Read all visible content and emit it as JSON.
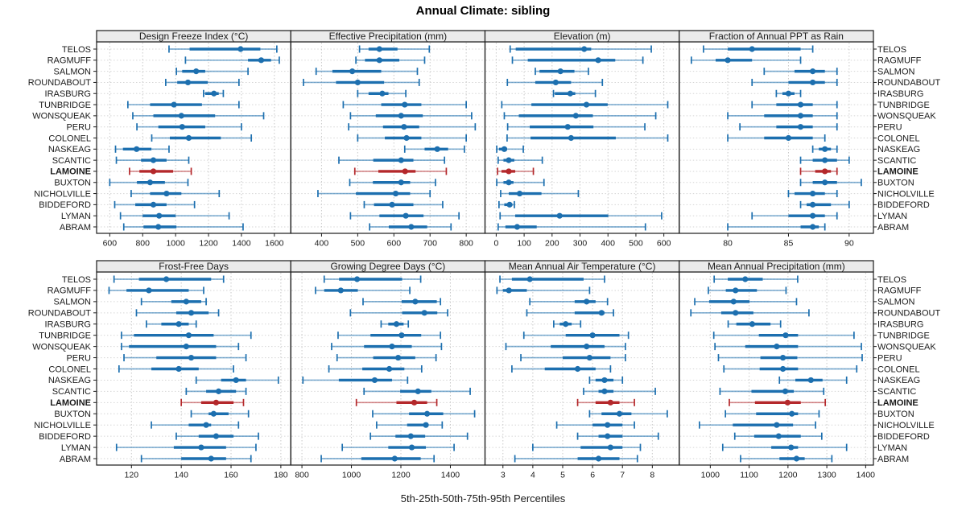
{
  "title": "Annual Climate: sibling",
  "caption": "5th-25th-50th-75th-95th Percentiles",
  "colors": {
    "series": "#1C6FAF",
    "series_whisker": "rgba(28,111,175,0.55)",
    "highlight": "#B4282B",
    "highlight_whisker": "rgba(180,40,43,0.55)",
    "grid": "#c9c9c9",
    "row_grid": "#d6d6d6",
    "strip_bg": "#ebebeb",
    "border": "#1a1a1a"
  },
  "chart_data": {
    "type": "trellis-percentile-dotplot",
    "percentile_labels": [
      "5th",
      "25th",
      "50th",
      "75th",
      "95th"
    ],
    "highlight_station": "LAMOINE",
    "stations": [
      "TELOS",
      "RAGMUFF",
      "SALMON",
      "ROUNDABOUT",
      "IRASBURG",
      "TUNBRIDGE",
      "WONSQUEAK",
      "PERU",
      "COLONEL",
      "NASKEAG",
      "SCANTIC",
      "LAMOINE",
      "BUXTON",
      "NICHOLVILLE",
      "BIDDEFORD",
      "LYMAN",
      "ABRAM"
    ],
    "panels": [
      {
        "title": "Design Freeze Index (°C)",
        "ticks": [
          600,
          800,
          1000,
          1200,
          1400,
          1600
        ],
        "xlim": [
          520,
          1700
        ],
        "values": [
          [
            960,
            1085,
            1395,
            1515,
            1615
          ],
          [
            1060,
            1440,
            1520,
            1580,
            1630
          ],
          [
            1005,
            1040,
            1125,
            1180,
            1440
          ],
          [
            940,
            1010,
            1075,
            1195,
            1385
          ],
          [
            1170,
            1180,
            1233,
            1262,
            1290
          ],
          [
            710,
            845,
            990,
            1160,
            1385
          ],
          [
            740,
            865,
            1035,
            1240,
            1535
          ],
          [
            765,
            895,
            1040,
            1180,
            1400
          ],
          [
            855,
            965,
            1080,
            1275,
            1460
          ],
          [
            635,
            680,
            763,
            853,
            960
          ],
          [
            640,
            790,
            865,
            945,
            1080
          ],
          [
            720,
            780,
            865,
            985,
            1095
          ],
          [
            600,
            765,
            845,
            935,
            1075
          ],
          [
            730,
            845,
            945,
            1035,
            1265
          ],
          [
            630,
            755,
            865,
            945,
            1115
          ],
          [
            665,
            800,
            900,
            1000,
            1325
          ],
          [
            685,
            805,
            895,
            1005,
            1410
          ]
        ]
      },
      {
        "title": "Effective Precipitation (mm)",
        "ticks": [
          400,
          500,
          600,
          700,
          800
        ],
        "xlim": [
          315,
          852
        ],
        "values": [
          [
            505,
            530,
            560,
            610,
            698
          ],
          [
            495,
            520,
            560,
            615,
            685
          ],
          [
            385,
            430,
            485,
            565,
            665
          ],
          [
            350,
            440,
            500,
            573,
            670
          ],
          [
            500,
            530,
            568,
            585,
            633
          ],
          [
            460,
            565,
            630,
            676,
            800
          ],
          [
            480,
            550,
            620,
            680,
            815
          ],
          [
            475,
            570,
            628,
            670,
            825
          ],
          [
            500,
            575,
            635,
            676,
            800
          ],
          [
            630,
            685,
            720,
            750,
            795
          ],
          [
            448,
            543,
            620,
            654,
            740
          ],
          [
            492,
            557,
            631,
            660,
            745
          ],
          [
            478,
            542,
            620,
            645,
            715
          ],
          [
            390,
            495,
            605,
            645,
            700
          ],
          [
            518,
            545,
            595,
            654,
            735
          ],
          [
            480,
            560,
            633,
            682,
            780
          ],
          [
            533,
            586,
            648,
            692,
            758
          ]
        ]
      },
      {
        "title": "Elevation (m)",
        "ticks": [
          0,
          100,
          200,
          300,
          400,
          500,
          600
        ],
        "xlim": [
          -40,
          655
        ],
        "values": [
          [
            50,
            70,
            315,
            340,
            555
          ],
          [
            58,
            113,
            365,
            426,
            525
          ],
          [
            140,
            155,
            230,
            280,
            330
          ],
          [
            40,
            140,
            213,
            268,
            380
          ],
          [
            205,
            210,
            265,
            283,
            355
          ],
          [
            20,
            126,
            323,
            399,
            614
          ],
          [
            29,
            81,
            285,
            346,
            571
          ],
          [
            41,
            120,
            256,
            348,
            532
          ],
          [
            39,
            123,
            268,
            428,
            614
          ],
          [
            2,
            10,
            29,
            39,
            97
          ],
          [
            7,
            26,
            45,
            65,
            165
          ],
          [
            5,
            19,
            45,
            68,
            133
          ],
          [
            2,
            26,
            45,
            62,
            171
          ],
          [
            16,
            45,
            84,
            162,
            294
          ],
          [
            10,
            29,
            48,
            58,
            65
          ],
          [
            14,
            68,
            227,
            401,
            592
          ],
          [
            7,
            33,
            75,
            145,
            534
          ]
        ]
      },
      {
        "title": "Fraction of Annual PPT as Rain",
        "ticks": [
          80,
          85,
          90
        ],
        "xlim": [
          76,
          92
        ],
        "values": [
          [
            78,
            80,
            82,
            86,
            87
          ],
          [
            77,
            79,
            80,
            82,
            86
          ],
          [
            83,
            85.5,
            87,
            88,
            89
          ],
          [
            82,
            85,
            87,
            88,
            89
          ],
          [
            84,
            84.5,
            85,
            85.5,
            86
          ],
          [
            82,
            84,
            86,
            87,
            89
          ],
          [
            80,
            83,
            86,
            87,
            89
          ],
          [
            81,
            84,
            86,
            87,
            89
          ],
          [
            80,
            83,
            85,
            87,
            88
          ],
          [
            87,
            87.5,
            88,
            88.5,
            89
          ],
          [
            86,
            87,
            88,
            89,
            90
          ],
          [
            86,
            87.2,
            88,
            88.5,
            89
          ],
          [
            86,
            87,
            88,
            89,
            91
          ],
          [
            85,
            85.5,
            87,
            88,
            89
          ],
          [
            86,
            86.5,
            87,
            88.5,
            90
          ],
          [
            82,
            85,
            87,
            88,
            89
          ],
          [
            80,
            86,
            87,
            87.5,
            88
          ]
        ]
      },
      {
        "title": "Frost-Free Days",
        "ticks": [
          120,
          140,
          160,
          180
        ],
        "xlim": [
          106,
          184
        ],
        "values": [
          [
            113,
            123,
            134,
            152,
            157
          ],
          [
            111,
            118,
            127,
            143,
            149
          ],
          [
            124,
            136,
            142,
            148,
            150
          ],
          [
            122,
            138,
            144,
            151,
            155
          ],
          [
            126,
            132,
            139,
            143,
            146
          ],
          [
            116,
            121,
            143,
            153,
            168
          ],
          [
            116,
            119,
            142,
            154,
            163
          ],
          [
            117,
            130,
            144,
            154,
            166
          ],
          [
            115,
            128,
            139,
            147,
            161
          ],
          [
            146,
            156,
            162,
            166,
            179
          ],
          [
            142,
            150,
            155,
            162,
            166
          ],
          [
            140,
            148,
            154,
            161,
            165
          ],
          [
            144,
            151,
            153,
            159,
            167
          ],
          [
            128,
            143,
            150,
            152,
            163
          ],
          [
            138,
            147,
            154,
            161,
            171
          ],
          [
            114,
            137,
            148,
            158,
            170
          ],
          [
            124,
            140,
            152,
            158,
            168
          ]
        ]
      },
      {
        "title": "Growing Degree Days (°C)",
        "ticks": [
          800,
          1000,
          1200,
          1400
        ],
        "xlim": [
          755,
          1540
        ],
        "values": [
          [
            890,
            950,
            1023,
            1205,
            1280
          ],
          [
            855,
            890,
            957,
            1026,
            1236
          ],
          [
            1047,
            1203,
            1258,
            1345,
            1360
          ],
          [
            996,
            1205,
            1295,
            1347,
            1389
          ],
          [
            1120,
            1149,
            1182,
            1211,
            1230
          ],
          [
            946,
            1077,
            1203,
            1282,
            1360
          ],
          [
            920,
            1051,
            1164,
            1244,
            1364
          ],
          [
            942,
            1088,
            1189,
            1258,
            1342
          ],
          [
            909,
            1044,
            1153,
            1214,
            1284
          ],
          [
            804,
            949,
            1094,
            1164,
            1227
          ],
          [
            1051,
            1197,
            1269,
            1323,
            1480
          ],
          [
            1020,
            1182,
            1254,
            1306,
            1345
          ],
          [
            1086,
            1233,
            1306,
            1371,
            1498
          ],
          [
            1102,
            1225,
            1301,
            1309,
            1367
          ],
          [
            1077,
            1178,
            1240,
            1298,
            1469
          ],
          [
            963,
            1149,
            1244,
            1301,
            1415
          ],
          [
            878,
            1040,
            1175,
            1280,
            1334
          ]
        ]
      },
      {
        "title": "Mean Annual Air Temperature (°C)",
        "ticks": [
          3,
          4,
          5,
          6,
          7,
          8
        ],
        "xlim": [
          2.4,
          8.9
        ],
        "values": [
          [
            2.9,
            3.3,
            3.9,
            5.7,
            6.4
          ],
          [
            2.8,
            3.0,
            3.2,
            3.8,
            5.9
          ],
          [
            3.9,
            5.4,
            5.8,
            6.1,
            6.5
          ],
          [
            3.8,
            5.4,
            6.3,
            6.4,
            6.7
          ],
          [
            4.7,
            4.9,
            5.1,
            5.3,
            5.6
          ],
          [
            3.7,
            5.1,
            6.0,
            6.9,
            7.2
          ],
          [
            3.1,
            4.6,
            5.8,
            6.4,
            7.1
          ],
          [
            3.6,
            5.0,
            5.9,
            6.6,
            7.1
          ],
          [
            3.3,
            4.4,
            5.5,
            6.1,
            6.6
          ],
          [
            5.9,
            6.1,
            6.4,
            6.7,
            7.0
          ],
          [
            5.7,
            6.2,
            6.4,
            6.7,
            8.1
          ],
          [
            5.5,
            6.1,
            6.6,
            6.9,
            7.4
          ],
          [
            5.9,
            6.3,
            6.9,
            7.3,
            8.5
          ],
          [
            4.8,
            6.0,
            6.5,
            7.0,
            7.4
          ],
          [
            5.5,
            6.2,
            6.5,
            7.0,
            8.2
          ],
          [
            4.0,
            5.6,
            6.6,
            7.0,
            7.6
          ],
          [
            3.4,
            5.5,
            6.2,
            6.9,
            7.5
          ]
        ]
      },
      {
        "title": "Mean Annual Precipitation (mm)",
        "ticks": [
          1000,
          1100,
          1200,
          1300,
          1400
        ],
        "xlim": [
          920,
          1420
        ],
        "values": [
          [
            1010,
            1045,
            1090,
            1135,
            1225
          ],
          [
            995,
            1040,
            1065,
            1120,
            1195
          ],
          [
            960,
            997,
            1060,
            1101,
            1222
          ],
          [
            950,
            1028,
            1065,
            1111,
            1254
          ],
          [
            1046,
            1067,
            1108,
            1155,
            1181
          ],
          [
            1009,
            1125,
            1194,
            1226,
            1370
          ],
          [
            1012,
            1090,
            1171,
            1226,
            1389
          ],
          [
            1021,
            1129,
            1187,
            1224,
            1391
          ],
          [
            1035,
            1127,
            1187,
            1226,
            1377
          ],
          [
            1178,
            1219,
            1259,
            1289,
            1351
          ],
          [
            1025,
            1106,
            1193,
            1215,
            1292
          ],
          [
            1049,
            1115,
            1199,
            1233,
            1296
          ],
          [
            1039,
            1118,
            1210,
            1226,
            1280
          ],
          [
            972,
            1058,
            1171,
            1213,
            1271
          ],
          [
            1063,
            1113,
            1176,
            1233,
            1287
          ],
          [
            1032,
            1157,
            1208,
            1226,
            1351
          ],
          [
            1078,
            1178,
            1222,
            1243,
            1313
          ]
        ]
      }
    ]
  }
}
